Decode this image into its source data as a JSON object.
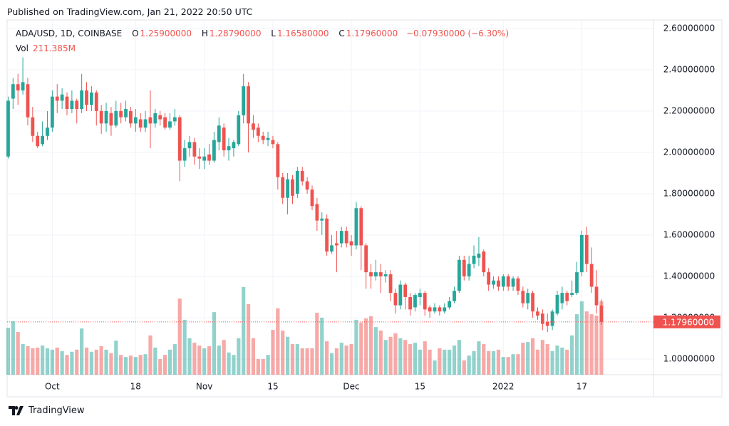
{
  "header": {
    "published": "Published on TradingView.com, Jan 21, 2022 20:50 UTC",
    "brand": "TradingView"
  },
  "chart_data": {
    "type": "candlestick",
    "legend": {
      "symbol": "ADA/USD, 1D, COINBASE",
      "ohlc": [
        {
          "key": "O",
          "value": "1.25900000"
        },
        {
          "key": "H",
          "value": "1.28790000"
        },
        {
          "key": "L",
          "value": "1.16580000"
        },
        {
          "key": "C",
          "value": "1.17960000"
        }
      ],
      "change": "−0.07930000 (−6.30%)",
      "volume_key": "Vol",
      "volume_value": "211.385M"
    },
    "colors": {
      "up": "#26a69a",
      "down": "#ef5350"
    },
    "grid": true,
    "ylim": [
      0.924,
      2.641
    ],
    "yticks": [
      {
        "value": 1.0,
        "label": "1.00000000"
      },
      {
        "value": 1.2,
        "label": "1.20000000"
      },
      {
        "value": 1.4,
        "label": "1.40000000"
      },
      {
        "value": 1.6,
        "label": "1.60000000"
      },
      {
        "value": 1.8,
        "label": "1.80000000"
      },
      {
        "value": 2.0,
        "label": "2.00000000"
      },
      {
        "value": 2.2,
        "label": "2.20000000"
      },
      {
        "value": 2.4,
        "label": "2.40000000"
      },
      {
        "value": 2.6,
        "label": "2.60000000"
      }
    ],
    "last_price_label": "1.17960000",
    "categories": [
      null,
      null,
      null,
      null,
      null,
      null,
      null,
      null,
      null,
      "Oct",
      null,
      null,
      null,
      null,
      null,
      null,
      null,
      null,
      null,
      null,
      null,
      null,
      null,
      null,
      null,
      null,
      "18",
      null,
      null,
      null,
      null,
      null,
      null,
      null,
      null,
      null,
      null,
      null,
      null,
      null,
      "Nov",
      null,
      null,
      null,
      null,
      null,
      null,
      null,
      null,
      null,
      null,
      null,
      null,
      null,
      "15",
      null,
      null,
      null,
      null,
      null,
      null,
      null,
      null,
      null,
      null,
      null,
      null,
      null,
      null,
      null,
      "Dec",
      null,
      null,
      null,
      null,
      null,
      null,
      null,
      null,
      null,
      null,
      null,
      null,
      null,
      "15",
      null,
      null,
      null,
      null,
      null,
      null,
      null,
      null,
      null,
      null,
      null,
      null,
      null,
      null,
      null,
      null,
      "2022",
      null,
      null,
      null,
      null,
      null,
      null,
      null,
      null,
      null,
      null,
      null,
      null,
      null,
      null,
      null,
      "17",
      null,
      null,
      null,
      null
    ],
    "open": [
      1.98,
      2.26,
      2.33,
      2.3,
      2.33,
      2.17,
      2.08,
      2.04,
      2.08,
      2.12,
      2.27,
      2.25,
      2.27,
      2.21,
      2.25,
      2.21,
      2.3,
      2.23,
      2.29,
      2.2,
      2.14,
      2.19,
      2.13,
      2.2,
      2.17,
      2.2,
      2.14,
      2.16,
      2.12,
      2.17,
      2.14,
      2.18,
      2.17,
      2.12,
      2.15,
      2.17,
      1.96,
      2.02,
      2.05,
      1.98,
      1.96,
      1.99,
      1.96,
      2.05,
      2.12,
      2.01,
      2.02,
      2.04,
      2.18,
      2.32,
      2.14,
      2.12,
      2.08,
      2.06,
      2.06,
      2.04,
      1.88,
      1.78,
      1.87,
      1.8,
      1.91,
      1.86,
      1.82,
      1.75,
      1.67,
      1.68,
      1.52,
      1.56,
      1.56,
      1.62,
      1.57,
      1.55,
      1.73,
      1.55,
      1.42,
      1.4,
      1.42,
      1.4,
      1.41,
      1.32,
      1.26,
      1.36,
      1.3,
      1.25,
      1.3,
      1.32,
      1.25,
      1.23,
      1.25,
      1.23,
      1.25,
      1.28,
      1.33,
      1.48,
      1.4,
      1.46,
      1.49,
      1.52,
      1.42,
      1.36,
      1.38,
      1.35,
      1.4,
      1.35,
      1.39,
      1.33,
      1.27,
      1.32,
      1.23,
      1.22,
      1.18,
      1.16,
      1.22,
      1.27,
      1.32,
      1.31,
      1.32,
      1.42,
      1.6,
      1.46,
      1.35,
      1.259
    ],
    "high": [
      2.27,
      2.36,
      2.38,
      2.46,
      2.36,
      2.22,
      2.1,
      2.15,
      2.2,
      2.3,
      2.33,
      2.31,
      2.29,
      2.3,
      2.26,
      2.38,
      2.34,
      2.32,
      2.3,
      2.23,
      2.24,
      2.22,
      2.25,
      2.24,
      2.25,
      2.22,
      2.21,
      2.19,
      2.2,
      2.3,
      2.21,
      2.2,
      2.19,
      2.19,
      2.21,
      2.18,
      2.06,
      2.08,
      2.07,
      2.02,
      2.02,
      2.04,
      2.1,
      2.17,
      2.14,
      2.07,
      2.06,
      2.2,
      2.38,
      2.34,
      2.18,
      2.14,
      2.1,
      2.1,
      2.08,
      2.05,
      1.9,
      1.9,
      1.89,
      1.93,
      1.93,
      1.88,
      1.84,
      1.78,
      1.71,
      1.7,
      1.6,
      1.62,
      1.64,
      1.64,
      1.6,
      1.76,
      1.74,
      1.56,
      1.46,
      1.48,
      1.46,
      1.43,
      1.43,
      1.34,
      1.38,
      1.37,
      1.32,
      1.32,
      1.34,
      1.33,
      1.26,
      1.27,
      1.26,
      1.27,
      1.3,
      1.35,
      1.5,
      1.5,
      1.5,
      1.55,
      1.59,
      1.53,
      1.44,
      1.4,
      1.4,
      1.41,
      1.41,
      1.4,
      1.4,
      1.35,
      1.34,
      1.33,
      1.25,
      1.24,
      1.22,
      1.24,
      1.33,
      1.35,
      1.33,
      1.38,
      1.47,
      1.62,
      1.64,
      1.54,
      1.43,
      1.2879
    ],
    "low": [
      1.97,
      2.21,
      2.23,
      2.28,
      2.13,
      2.05,
      2.02,
      2.03,
      2.06,
      2.1,
      2.19,
      2.21,
      2.18,
      2.19,
      2.14,
      2.19,
      2.2,
      2.2,
      2.13,
      2.09,
      2.1,
      2.08,
      2.12,
      2.14,
      2.15,
      2.12,
      2.1,
      2.1,
      2.1,
      2.02,
      2.12,
      2.13,
      2.11,
      2.11,
      2.13,
      1.86,
      1.93,
      1.98,
      1.94,
      1.92,
      1.92,
      1.94,
      1.95,
      2.01,
      1.98,
      1.96,
      1.98,
      2.03,
      2.14,
      2.0,
      2.07,
      2.05,
      2.04,
      2.03,
      2.02,
      1.82,
      1.75,
      1.7,
      1.75,
      1.78,
      1.84,
      1.8,
      1.72,
      1.62,
      1.6,
      1.5,
      1.51,
      1.42,
      1.54,
      1.54,
      1.5,
      1.53,
      1.43,
      1.34,
      1.34,
      1.38,
      1.32,
      1.37,
      1.28,
      1.22,
      1.24,
      1.24,
      1.21,
      1.23,
      1.26,
      1.21,
      1.2,
      1.22,
      1.21,
      1.22,
      1.24,
      1.27,
      1.32,
      1.38,
      1.38,
      1.44,
      1.45,
      1.4,
      1.33,
      1.34,
      1.33,
      1.33,
      1.33,
      1.33,
      1.31,
      1.25,
      1.24,
      1.2,
      1.19,
      1.14,
      1.13,
      1.14,
      1.21,
      1.24,
      1.26,
      1.3,
      1.31,
      1.4,
      1.42,
      1.32,
      1.22,
      1.1658
    ],
    "close": [
      2.25,
      2.33,
      2.3,
      2.34,
      2.17,
      2.08,
      2.03,
      2.08,
      2.12,
      2.27,
      2.25,
      2.28,
      2.21,
      2.25,
      2.21,
      2.3,
      2.23,
      2.29,
      2.2,
      2.14,
      2.2,
      2.13,
      2.2,
      2.17,
      2.21,
      2.14,
      2.17,
      2.12,
      2.16,
      2.14,
      2.19,
      2.16,
      2.12,
      2.15,
      2.17,
      1.96,
      2.02,
      2.05,
      1.98,
      1.97,
      1.98,
      1.96,
      2.06,
      2.13,
      2.01,
      2.03,
      2.05,
      2.18,
      2.32,
      2.14,
      2.11,
      2.08,
      2.06,
      2.07,
      2.04,
      1.88,
      1.78,
      1.87,
      1.79,
      1.91,
      1.86,
      1.82,
      1.74,
      1.67,
      1.68,
      1.52,
      1.55,
      1.55,
      1.62,
      1.56,
      1.55,
      1.73,
      1.55,
      1.42,
      1.4,
      1.42,
      1.4,
      1.41,
      1.32,
      1.26,
      1.36,
      1.3,
      1.24,
      1.31,
      1.32,
      1.24,
      1.23,
      1.25,
      1.23,
      1.25,
      1.28,
      1.33,
      1.48,
      1.4,
      1.46,
      1.5,
      1.51,
      1.42,
      1.36,
      1.38,
      1.35,
      1.4,
      1.35,
      1.39,
      1.33,
      1.27,
      1.32,
      1.23,
      1.21,
      1.17,
      1.16,
      1.23,
      1.31,
      1.32,
      1.28,
      1.32,
      1.42,
      1.6,
      1.46,
      1.35,
      1.26,
      1.1796
    ],
    "volume": [
      135,
      154,
      123,
      88,
      82,
      76,
      78,
      84,
      76,
      72,
      78,
      68,
      57,
      66,
      72,
      133,
      78,
      66,
      72,
      82,
      72,
      62,
      98,
      57,
      51,
      55,
      51,
      57,
      59,
      113,
      78,
      45,
      57,
      72,
      88,
      219,
      158,
      105,
      92,
      84,
      76,
      82,
      180,
      84,
      100,
      64,
      57,
      105,
      252,
      203,
      105,
      45,
      45,
      57,
      129,
      191,
      127,
      109,
      88,
      88,
      76,
      76,
      76,
      178,
      164,
      96,
      62,
      76,
      92,
      84,
      88,
      158,
      150,
      162,
      168,
      137,
      127,
      100,
      109,
      119,
      105,
      100,
      88,
      92,
      72,
      96,
      72,
      41,
      76,
      72,
      72,
      84,
      100,
      41,
      55,
      68,
      96,
      88,
      68,
      68,
      72,
      51,
      51,
      59,
      59,
      92,
      94,
      105,
      72,
      100,
      88,
      68,
      84,
      78,
      72,
      113,
      174,
      211,
      182,
      174,
      170,
      211.385
    ]
  }
}
